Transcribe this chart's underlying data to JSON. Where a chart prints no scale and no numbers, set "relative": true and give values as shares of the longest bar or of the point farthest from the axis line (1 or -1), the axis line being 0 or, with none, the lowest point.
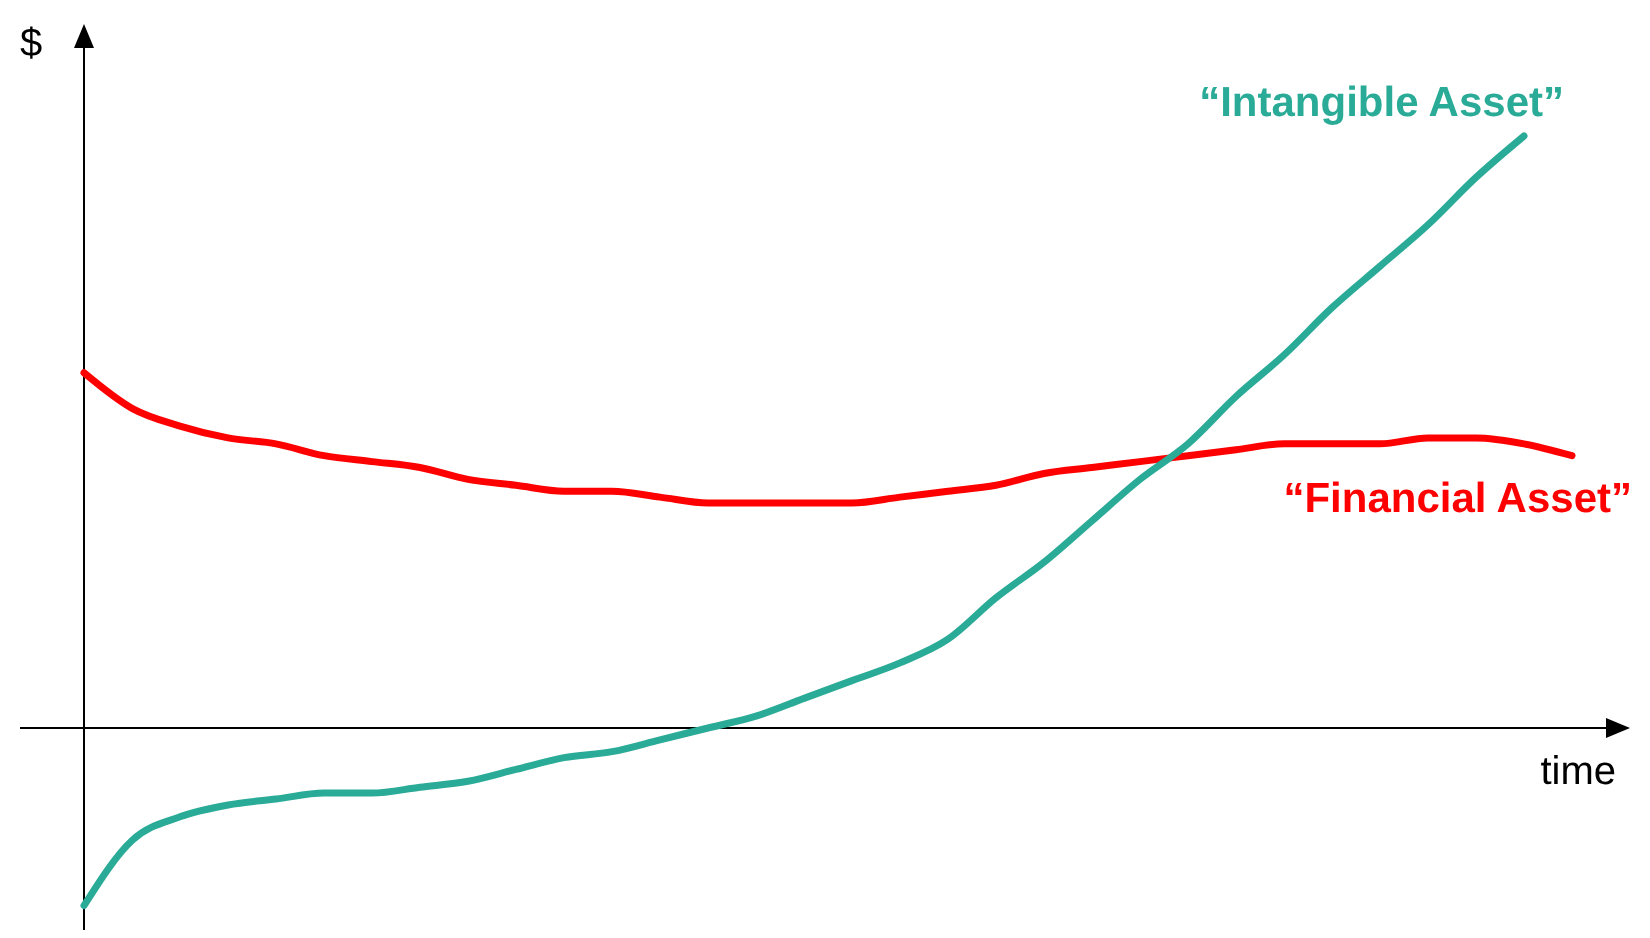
{
  "chart_data": {
    "type": "line",
    "relative": true,
    "xlabel": "time",
    "ylabel": "$",
    "categories": [
      null,
      null,
      null,
      null,
      null,
      null,
      null,
      null,
      null,
      null,
      null,
      null,
      null,
      null,
      null,
      null,
      null,
      null,
      null,
      null,
      null,
      null,
      null,
      null,
      null,
      null,
      null,
      null,
      null,
      null,
      null,
      null
    ],
    "series": [
      {
        "name": "“Financial Asset”",
        "color": "#ff0000",
        "values": [
          0.6,
          0.54,
          0.51,
          0.49,
          0.48,
          0.46,
          0.45,
          0.44,
          0.42,
          0.41,
          0.4,
          0.4,
          0.39,
          0.38,
          0.38,
          0.38,
          0.38,
          0.39,
          0.4,
          0.41,
          0.43,
          0.44,
          0.45,
          0.46,
          0.47,
          0.48,
          0.48,
          0.48,
          0.49,
          0.49,
          0.48,
          0.46
        ]
      },
      {
        "name": "“Intangible Asset”",
        "color": "#2aab97",
        "values": [
          -0.3,
          -0.19,
          -0.15,
          -0.13,
          -0.12,
          -0.11,
          -0.11,
          -0.1,
          -0.09,
          -0.07,
          -0.05,
          -0.04,
          -0.02,
          0,
          0.02,
          0.05,
          0.08,
          0.11,
          0.15,
          0.22,
          0.28,
          0.35,
          0.42,
          0.48,
          0.56,
          0.63,
          0.71,
          0.78,
          0.85,
          0.93,
          1,
          null
        ]
      }
    ],
    "legend": false,
    "marker": "none",
    "line_style": "solid"
  }
}
